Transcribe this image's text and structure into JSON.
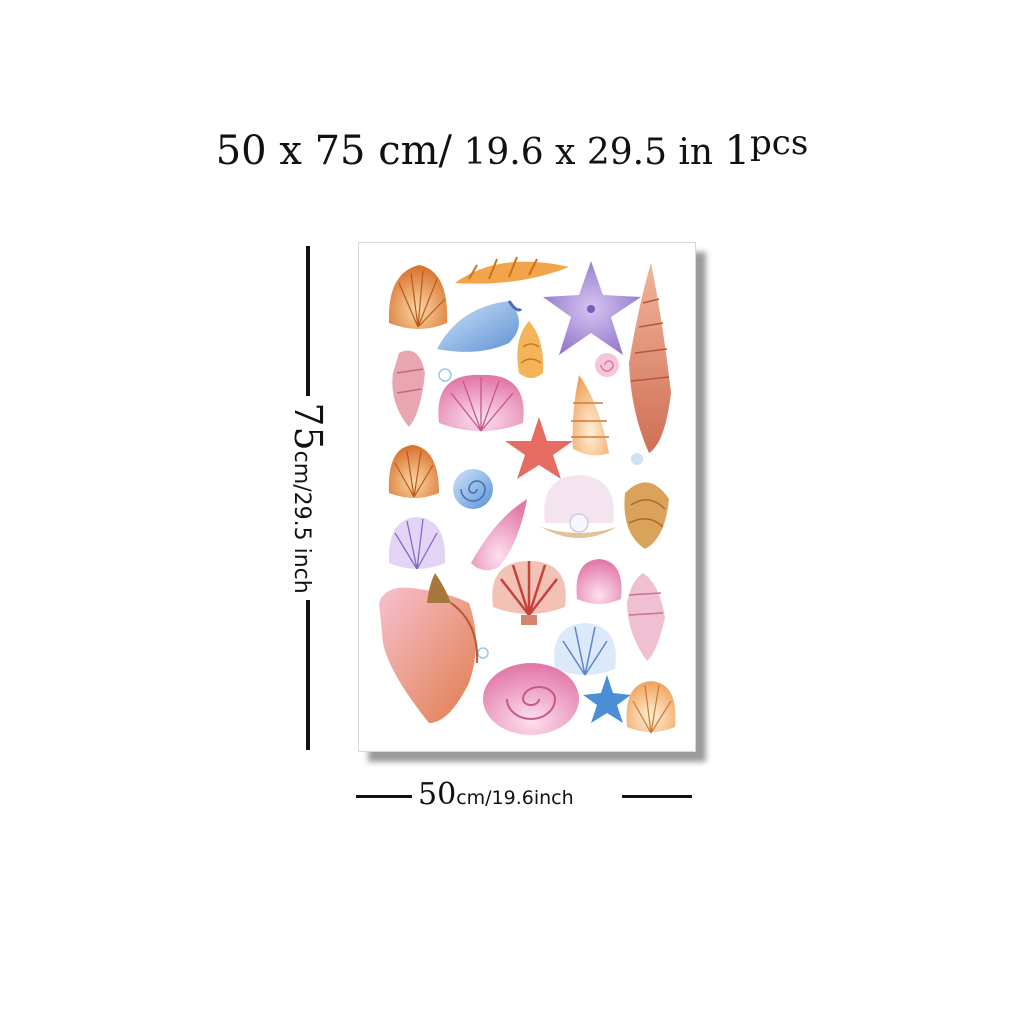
{
  "header": {
    "dimensions_cm": "50 x 75 cm/",
    "dimensions_in": "19.6 x 29.5 in",
    "count_num": "1",
    "count_unit": "pcs"
  },
  "height_label": {
    "value": "75",
    "unit": "cm/29.5 inch"
  },
  "width_label": {
    "value": "50",
    "unit": "cm/19.6inch"
  },
  "poster": {
    "motif": "watercolor seashells and starfish",
    "colors": {
      "orange": "#e8873a",
      "pink": "#ee8fb8",
      "purple": "#a98fd6",
      "coral": "#e98a6f",
      "blue": "#5b9bd8",
      "peach": "#f4b36b"
    }
  }
}
